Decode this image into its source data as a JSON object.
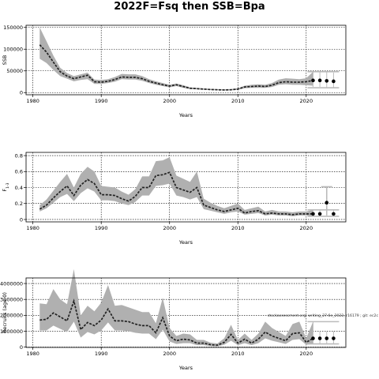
{
  "title": "2022F=Fsq then SSB=Bpa",
  "note": "stockassessment.org, writing_27.6e_2022, r16179 ; git: ec2c",
  "chart_data": [
    {
      "type": "line",
      "ylabel": "SSB",
      "xlabel": "Years",
      "xlim": [
        1979,
        2025.8
      ],
      "ylim": [
        -5000,
        155000
      ],
      "yticks": [
        0,
        50000,
        100000,
        150000
      ],
      "xticks": [
        1980,
        1990,
        2000,
        2010,
        2020
      ],
      "grid": true,
      "x": [
        1981,
        1982,
        1983,
        1984,
        1985,
        1986,
        1987,
        1988,
        1989,
        1990,
        1991,
        1992,
        1993,
        1994,
        1995,
        1996,
        1997,
        1998,
        1999,
        2000,
        2001,
        2002,
        2003,
        2004,
        2005,
        2006,
        2007,
        2008,
        2009,
        2010,
        2011,
        2012,
        2013,
        2014,
        2015,
        2016,
        2017,
        2018,
        2019,
        2020,
        2021
      ],
      "estimate": [
        110000,
        93000,
        70000,
        48000,
        38000,
        32000,
        36000,
        40000,
        25000,
        24000,
        26000,
        30000,
        36000,
        35000,
        35000,
        32000,
        26000,
        22000,
        18000,
        15000,
        18000,
        14000,
        10000,
        9000,
        8000,
        7000,
        6500,
        6000,
        6500,
        8000,
        13000,
        14000,
        15000,
        14000,
        17000,
        23000,
        25000,
        24000,
        24000,
        25000,
        28000
      ],
      "lower": [
        78000,
        68000,
        52000,
        38000,
        32000,
        26000,
        29000,
        31000,
        20000,
        20000,
        22000,
        25000,
        31000,
        30000,
        30000,
        27000,
        22000,
        18000,
        15000,
        12000,
        15000,
        11000,
        8000,
        7500,
        6500,
        5800,
        5400,
        5000,
        5300,
        6500,
        10000,
        11000,
        11000,
        11000,
        13000,
        18000,
        19000,
        18000,
        18000,
        17000,
        16000
      ],
      "upper": [
        150000,
        118000,
        85000,
        57000,
        45000,
        38000,
        42000,
        46000,
        30000,
        29000,
        31000,
        36000,
        43000,
        42000,
        42000,
        38000,
        31000,
        26000,
        22000,
        18000,
        21000,
        17000,
        12000,
        11000,
        9500,
        8500,
        8000,
        7500,
        8000,
        10000,
        16000,
        18000,
        19000,
        18000,
        22000,
        30000,
        33000,
        32000,
        31000,
        33000,
        48000
      ],
      "forecast": {
        "x": [
          2021,
          2022,
          2023,
          2024
        ],
        "estimate": [
          28000,
          28000,
          27000,
          26000
        ],
        "lower": [
          13000,
          13000,
          12000,
          11000
        ],
        "upper": [
          48000,
          48000,
          48000,
          46000
        ]
      }
    },
    {
      "type": "line",
      "ylabel": "F",
      "ylabel_sub": "1-3",
      "xlabel": "Years",
      "xlim": [
        1979,
        2025.8
      ],
      "ylim": [
        -0.03,
        0.84
      ],
      "yticks": [
        0.0,
        0.2,
        0.4,
        0.6,
        0.8
      ],
      "xticks": [
        1980,
        1990,
        2000,
        2010,
        2020
      ],
      "grid": true,
      "x": [
        1981,
        1982,
        1983,
        1984,
        1985,
        1986,
        1987,
        1988,
        1989,
        1990,
        1991,
        1992,
        1993,
        1994,
        1995,
        1996,
        1997,
        1998,
        1999,
        2000,
        2001,
        2002,
        2003,
        2004,
        2005,
        2006,
        2007,
        2008,
        2009,
        2010,
        2011,
        2012,
        2013,
        2014,
        2015,
        2016,
        2017,
        2018,
        2019,
        2020,
        2021
      ],
      "estimate": [
        0.13,
        0.18,
        0.27,
        0.35,
        0.42,
        0.3,
        0.43,
        0.5,
        0.45,
        0.31,
        0.31,
        0.3,
        0.26,
        0.23,
        0.29,
        0.4,
        0.4,
        0.55,
        0.56,
        0.59,
        0.4,
        0.37,
        0.34,
        0.4,
        0.18,
        0.15,
        0.12,
        0.1,
        0.12,
        0.14,
        0.08,
        0.1,
        0.11,
        0.07,
        0.08,
        0.07,
        0.07,
        0.06,
        0.07,
        0.07,
        0.07
      ],
      "lower": [
        0.1,
        0.14,
        0.21,
        0.28,
        0.32,
        0.23,
        0.33,
        0.39,
        0.35,
        0.24,
        0.24,
        0.23,
        0.2,
        0.18,
        0.22,
        0.3,
        0.3,
        0.42,
        0.43,
        0.45,
        0.3,
        0.28,
        0.25,
        0.28,
        0.13,
        0.11,
        0.09,
        0.07,
        0.09,
        0.1,
        0.06,
        0.07,
        0.08,
        0.05,
        0.06,
        0.05,
        0.05,
        0.04,
        0.05,
        0.05,
        0.04
      ],
      "upper": [
        0.18,
        0.25,
        0.36,
        0.47,
        0.57,
        0.4,
        0.57,
        0.66,
        0.6,
        0.42,
        0.41,
        0.4,
        0.35,
        0.31,
        0.38,
        0.54,
        0.54,
        0.73,
        0.74,
        0.78,
        0.55,
        0.51,
        0.47,
        0.6,
        0.26,
        0.21,
        0.17,
        0.14,
        0.17,
        0.2,
        0.12,
        0.14,
        0.16,
        0.1,
        0.12,
        0.1,
        0.1,
        0.09,
        0.1,
        0.1,
        0.12
      ],
      "forecast": {
        "x": [
          2021,
          2022,
          2024
        ],
        "estimate": [
          0.07,
          0.07,
          0.07
        ],
        "lower": [
          0.04,
          0.04,
          0.04
        ],
        "upper": [
          0.12,
          0.12,
          0.12
        ]
      },
      "extra_point": {
        "x": 2023,
        "y": 0.21,
        "lower": 0.05,
        "upper": 0.41
      }
    },
    {
      "type": "line",
      "ylabel": "Recruits (age 0)",
      "xlabel": "Years",
      "xlim": [
        1979,
        2025.8
      ],
      "ylim": [
        -20000,
        4350000
      ],
      "yticks": [
        0,
        1000000,
        2000000,
        3000000,
        4000000
      ],
      "ytick_labels": [
        "0",
        "1000000",
        "2000000",
        "3000000",
        "4000000"
      ],
      "xticks": [
        1980,
        1990,
        2000,
        2010,
        2020
      ],
      "grid": true,
      "x": [
        1981,
        1982,
        1983,
        1984,
        1985,
        1986,
        1987,
        1988,
        1989,
        1990,
        1991,
        1992,
        1993,
        1994,
        1995,
        1996,
        1997,
        1998,
        1999,
        2000,
        2001,
        2002,
        2003,
        2004,
        2005,
        2006,
        2007,
        2008,
        2009,
        2010,
        2011,
        2012,
        2013,
        2014,
        2015,
        2016,
        2017,
        2018,
        2019,
        2020,
        2021
      ],
      "estimate": [
        1700000,
        1750000,
        2150000,
        1900000,
        1650000,
        2900000,
        1100000,
        1550000,
        1350000,
        1700000,
        2400000,
        1650000,
        1650000,
        1600000,
        1450000,
        1350000,
        1350000,
        900000,
        1850000,
        700000,
        400000,
        500000,
        450000,
        250000,
        250000,
        150000,
        120000,
        300000,
        800000,
        250000,
        500000,
        250000,
        500000,
        950000,
        700000,
        550000,
        400000,
        850000,
        900000,
        300000,
        550000
      ],
      "lower": [
        1050000,
        1050000,
        1350000,
        1150000,
        950000,
        1600000,
        600000,
        950000,
        800000,
        1050000,
        1550000,
        1050000,
        1050000,
        1000000,
        900000,
        850000,
        850000,
        500000,
        1100000,
        350000,
        200000,
        250000,
        250000,
        120000,
        120000,
        70000,
        50000,
        150000,
        400000,
        120000,
        250000,
        120000,
        250000,
        550000,
        400000,
        300000,
        200000,
        450000,
        500000,
        150000,
        200000
      ],
      "upper": [
        2750000,
        2700000,
        3650000,
        3000000,
        2700000,
        4900000,
        2000000,
        2600000,
        2250000,
        2800000,
        3900000,
        2600000,
        2650000,
        2500000,
        2350000,
        2200000,
        2200000,
        1500000,
        3100000,
        1200000,
        700000,
        850000,
        800000,
        450000,
        450000,
        280000,
        230000,
        550000,
        1400000,
        450000,
        850000,
        450000,
        850000,
        1600000,
        1200000,
        950000,
        700000,
        1450000,
        1600000,
        550000,
        1600000
      ],
      "forecast": {
        "x": [
          2021,
          2022,
          2023,
          2024
        ],
        "estimate": [
          550000,
          550000,
          550000,
          550000
        ],
        "lower": [
          200000,
          200000,
          200000,
          200000
        ],
        "upper": [
          1600000,
          1000000,
          1000000,
          1000000
        ]
      }
    }
  ]
}
